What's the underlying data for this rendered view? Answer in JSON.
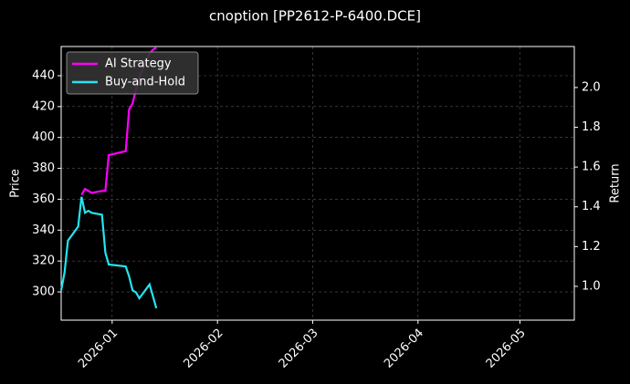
{
  "chart_data": {
    "type": "line",
    "title": "cnoption [PP2612-P-6400.DCE]",
    "ylabel": "Price",
    "y2label": "Return",
    "x": [
      "2025-12-17",
      "2025-12-18",
      "2025-12-19",
      "2025-12-22",
      "2025-12-23",
      "2025-12-24",
      "2025-12-25",
      "2025-12-26",
      "2025-12-29",
      "2025-12-30",
      "2025-12-31",
      "2026-01-05",
      "2026-01-06",
      "2026-01-07",
      "2026-01-08",
      "2026-01-09",
      "2026-01-12",
      "2026-01-13",
      "2026-01-14"
    ],
    "xlim": [
      "2025-12-17",
      "2026-05-17"
    ],
    "xticks": [
      "2026-01",
      "2026-02",
      "2026-03",
      "2026-04",
      "2026-05"
    ],
    "ylim": [
      281.7,
      458.9
    ],
    "yticks": [
      300,
      320,
      340,
      360,
      380,
      400,
      420,
      440
    ],
    "y2lim": [
      0.83,
      2.206
    ],
    "y2ticks": [
      {
        "value": 1.0,
        "label": "1.0"
      },
      {
        "value": 1.2,
        "label": "1.2"
      },
      {
        "value": 1.4,
        "label": "1.4"
      },
      {
        "value": 1.6,
        "label": "1.6"
      },
      {
        "value": 1.8,
        "label": "1.8"
      },
      {
        "value": 2.0,
        "label": "2.0"
      }
    ],
    "grid": true,
    "legend": "upper left",
    "series": [
      {
        "name": "AI Strategy",
        "color": "#ff00ff",
        "axis": "y2",
        "values": [
          null,
          null,
          null,
          null,
          1.46,
          1.49,
          1.48,
          1.47,
          1.48,
          1.48,
          1.66,
          1.68,
          1.89,
          1.92,
          1.99,
          2.05,
          2.17,
          2.19,
          2.2
        ]
      },
      {
        "name": "Buy-and-Hold",
        "color": "#22e5f0",
        "axis": "y2",
        "values": [
          0.98,
          1.07,
          1.23,
          1.3,
          1.45,
          1.37,
          1.38,
          1.37,
          1.36,
          1.17,
          1.11,
          1.1,
          1.05,
          0.98,
          0.97,
          0.94,
          1.01,
          0.95,
          0.89
        ]
      }
    ]
  }
}
